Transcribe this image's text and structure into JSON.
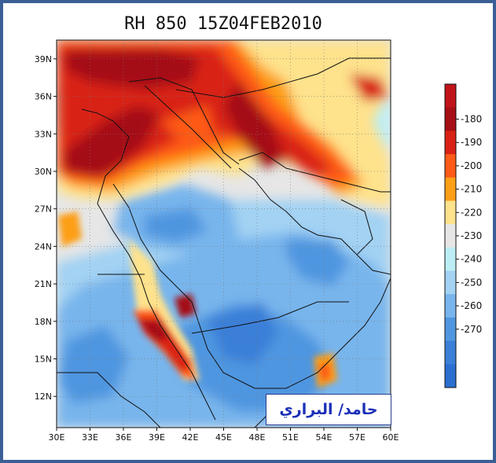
{
  "title": "RH 850 15Z04FEB2010",
  "map": {
    "lon_range": [
      30,
      60
    ],
    "lat_range": [
      9.5,
      40.5
    ],
    "x_ticks": [
      "30E",
      "33E",
      "36E",
      "39E",
      "42E",
      "45E",
      "48E",
      "51E",
      "54E",
      "57E",
      "60E"
    ],
    "y_ticks": [
      "39N",
      "36N",
      "33N",
      "30N",
      "27N",
      "24N",
      "21N",
      "18N",
      "15N",
      "12N"
    ],
    "y_tick_values": [
      39,
      36,
      33,
      30,
      27,
      24,
      21,
      18,
      15,
      12
    ],
    "x_tick_values": [
      30,
      33,
      36,
      39,
      42,
      45,
      48,
      51,
      54,
      57,
      60
    ],
    "grid": "dotted"
  },
  "colorbar": {
    "labels": [
      "-180",
      "-190",
      "-200",
      "-210",
      "-220",
      "-230",
      "-240",
      "-250",
      "-260",
      "-270"
    ],
    "colors": [
      "#c0141a",
      "#a50f15",
      "#d92115",
      "#fe5a18",
      "#fd9f17",
      "#fee28c",
      "#e6e6e6",
      "#bdeef5",
      "#a3d2f3",
      "#78b5ec",
      "#4f96e0",
      "#3a7fd8",
      "#2b6fd1"
    ]
  },
  "colors": {
    "frame": "#3b5f95",
    "ocean_land_base": "#e6e6e6"
  },
  "signature": {
    "text": "حامد/ البراري"
  }
}
